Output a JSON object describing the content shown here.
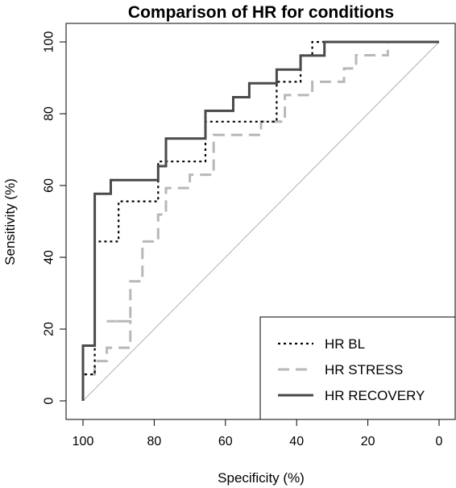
{
  "chart_data": {
    "type": "line",
    "title": "Comparison of HR for conditions",
    "xlabel": "Specificity (%)",
    "ylabel": "Sensitivity (%)",
    "xlim": [
      100,
      0
    ],
    "ylim": [
      0,
      100
    ],
    "x_ticks": [
      100,
      80,
      60,
      40,
      20,
      0
    ],
    "y_ticks": [
      0,
      20,
      40,
      60,
      80,
      100
    ],
    "grid": false,
    "legend_position": "bottom-right",
    "diagonal_reference": true,
    "colors": {
      "hr_bl": "#000000",
      "hr_stress": "#b8b8b8",
      "hr_recovery": "#4a4a4a",
      "reference": "#b0b0b0"
    },
    "series": [
      {
        "name": "HR BL",
        "style": "dotted",
        "points": [
          [
            100,
            0
          ],
          [
            100,
            7.4
          ],
          [
            96.7,
            7.4
          ],
          [
            96.7,
            44.4
          ],
          [
            93.3,
            44.4
          ],
          [
            90,
            44.4
          ],
          [
            90,
            55.6
          ],
          [
            78.9,
            55.6
          ],
          [
            78.9,
            66.7
          ],
          [
            65.6,
            66.7
          ],
          [
            65.6,
            77.8
          ],
          [
            45.6,
            77.8
          ],
          [
            45.6,
            88.9
          ],
          [
            38.9,
            88.9
          ],
          [
            38.9,
            96.3
          ],
          [
            35.6,
            96.3
          ],
          [
            35.6,
            100
          ],
          [
            0,
            100
          ]
        ]
      },
      {
        "name": "HR STRESS",
        "style": "dashed",
        "points": [
          [
            100,
            0
          ],
          [
            100,
            7.4
          ],
          [
            96.7,
            7.4
          ],
          [
            96.7,
            11.1
          ],
          [
            93.3,
            11.1
          ],
          [
            93.3,
            14.8
          ],
          [
            86.7,
            14.8
          ],
          [
            86.7,
            22.2
          ],
          [
            93.3,
            22.2
          ],
          [
            86.7,
            22.2
          ],
          [
            86.7,
            33.3
          ],
          [
            83.3,
            33.3
          ],
          [
            83.3,
            44.4
          ],
          [
            78.9,
            44.4
          ],
          [
            78.9,
            51.9
          ],
          [
            76.7,
            51.9
          ],
          [
            76.7,
            59.3
          ],
          [
            70,
            59.3
          ],
          [
            70,
            63
          ],
          [
            63.3,
            63
          ],
          [
            63.3,
            74.1
          ],
          [
            50,
            74.1
          ],
          [
            50,
            77.8
          ],
          [
            43.3,
            77.8
          ],
          [
            43.3,
            85.2
          ],
          [
            35.6,
            85.2
          ],
          [
            35.6,
            88.9
          ],
          [
            26.7,
            88.9
          ],
          [
            26.7,
            92.6
          ],
          [
            23.3,
            92.6
          ],
          [
            23.3,
            96.3
          ],
          [
            14.4,
            96.3
          ],
          [
            14.4,
            100
          ],
          [
            0,
            100
          ]
        ]
      },
      {
        "name": "HR RECOVERY",
        "style": "solid",
        "points": [
          [
            100,
            0
          ],
          [
            100,
            15.4
          ],
          [
            96.7,
            15.4
          ],
          [
            96.7,
            57.7
          ],
          [
            92.2,
            57.7
          ],
          [
            92.2,
            61.5
          ],
          [
            78.9,
            61.5
          ],
          [
            78.9,
            65.4
          ],
          [
            76.7,
            65.4
          ],
          [
            76.7,
            73.1
          ],
          [
            65.6,
            73.1
          ],
          [
            65.6,
            80.8
          ],
          [
            57.8,
            80.8
          ],
          [
            57.8,
            84.6
          ],
          [
            53.3,
            84.6
          ],
          [
            53.3,
            88.5
          ],
          [
            45.6,
            88.5
          ],
          [
            45.6,
            92.3
          ],
          [
            38.9,
            92.3
          ],
          [
            38.9,
            96.2
          ],
          [
            32.2,
            96.2
          ],
          [
            32.2,
            100
          ],
          [
            0,
            100
          ]
        ]
      }
    ],
    "legend": [
      "HR BL",
      "HR STRESS",
      "HR RECOVERY"
    ]
  }
}
